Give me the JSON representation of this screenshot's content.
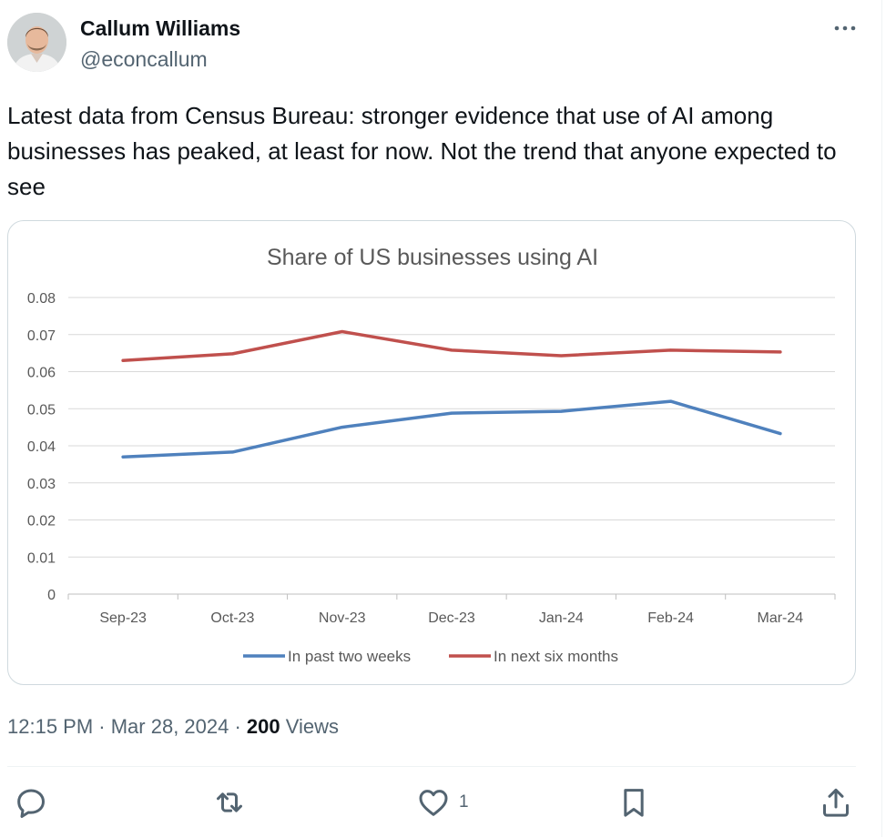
{
  "author": {
    "name": "Callum Williams",
    "handle": "@econcallum",
    "avatar_icon": "person-avatar"
  },
  "more_icon": "more-horizontal-icon",
  "tweet": {
    "text": "Latest data from Census Bureau: stronger evidence that use of AI among businesses has peaked, at least for now. Not the trend that anyone expected to see"
  },
  "meta": {
    "time_date": "12:15 PM · Mar 28, 2024 · ",
    "views_count": "200",
    "views_label": " Views"
  },
  "actions": {
    "reply_icon": "reply-icon",
    "retweet_icon": "retweet-icon",
    "like_icon": "heart-icon",
    "like_count": "1",
    "bookmark_icon": "bookmark-icon",
    "share_icon": "share-icon"
  },
  "chart_data": {
    "type": "line",
    "title": "Share of US businesses using AI",
    "xlabel": "",
    "ylabel": "",
    "categories": [
      "Sep-23",
      "Oct-23",
      "Nov-23",
      "Dec-23",
      "Jan-24",
      "Feb-24",
      "Mar-24"
    ],
    "series": [
      {
        "name": "In past two weeks",
        "color": "#4f81bd",
        "values": [
          0.037,
          0.0383,
          0.045,
          0.0488,
          0.0493,
          0.052,
          0.0433
        ]
      },
      {
        "name": "In next six months",
        "color": "#c0504d",
        "values": [
          0.063,
          0.0648,
          0.0708,
          0.0658,
          0.0643,
          0.0658,
          0.0653
        ]
      }
    ],
    "ylim": [
      0,
      0.08
    ],
    "yticks": [
      "0",
      "0.01",
      "0.02",
      "0.03",
      "0.04",
      "0.05",
      "0.06",
      "0.07",
      "0.08"
    ],
    "grid": true,
    "legend": "bottom"
  }
}
